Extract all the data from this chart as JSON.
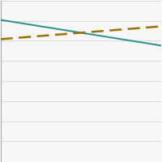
{
  "solid_line": {
    "x": [
      0,
      1
    ],
    "y": [
      0.88,
      0.72
    ],
    "color": "#2a9090",
    "linewidth": 1.4,
    "linestyle": "solid"
  },
  "dashed_line": {
    "x": [
      0,
      1
    ],
    "y": [
      0.76,
      0.84
    ],
    "color": "#9B7000",
    "linewidth": 1.8,
    "dash_pattern": [
      6,
      3
    ]
  },
  "ylim": [
    0,
    1.0
  ],
  "xlim": [
    0,
    1
  ],
  "grid_color": "#cccccc",
  "grid_linewidth": 0.5,
  "background_color": "#f7f7f7",
  "n_gridlines": 8,
  "border_color": "#aaaaaa",
  "border_linewidth": 0.8
}
